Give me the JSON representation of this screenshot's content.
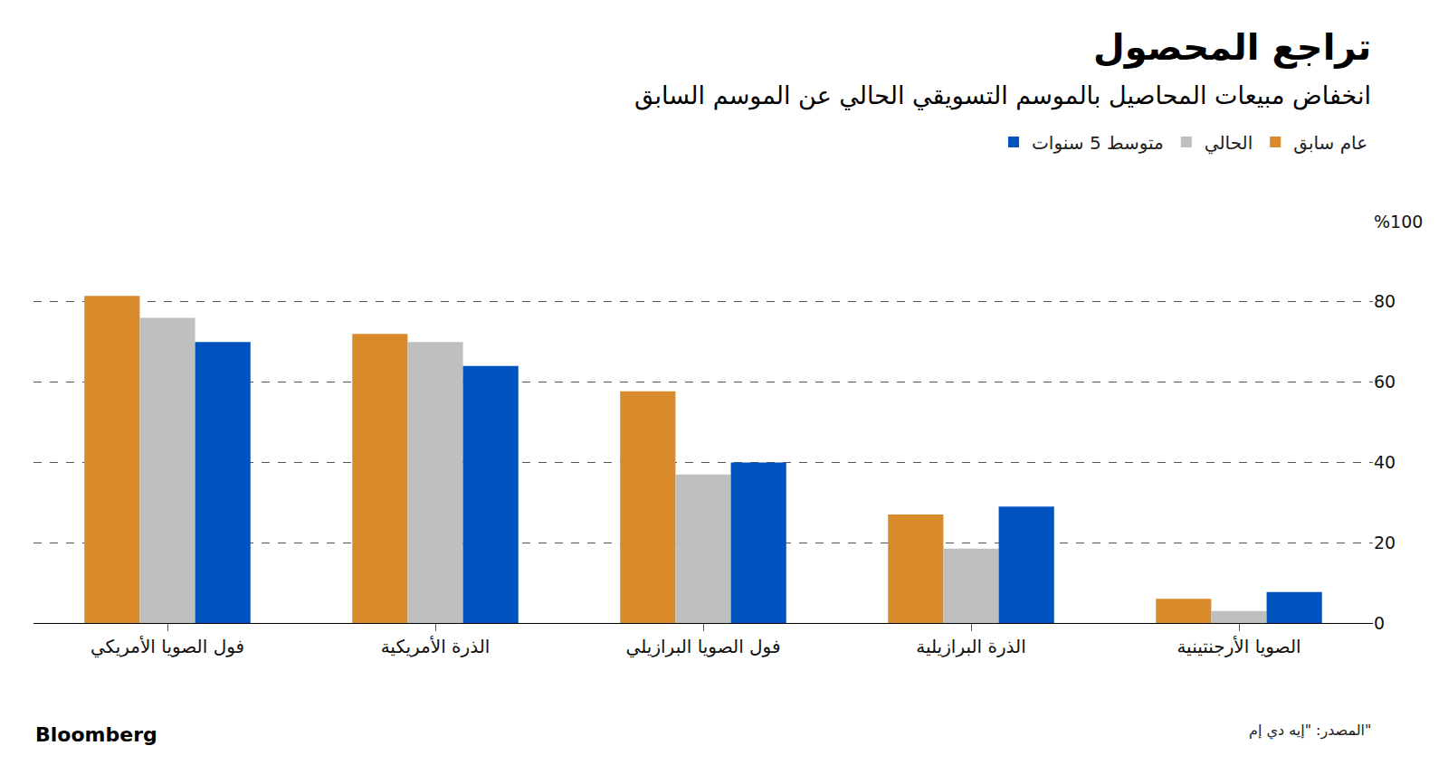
{
  "chart_data": {
    "type": "bar",
    "title": "تراجع المحصول",
    "subtitle": "انخفاض مبيعات المحاصيل بالموسم التسويقي الحالي عن الموسم السابق",
    "categories": [
      "فول الصويا الأمريكي",
      "الذرة الأمريكية",
      "فول الصويا البرازيلي",
      "الذرة البرازيلية",
      "الصويا الأرجنتينية"
    ],
    "series": [
      {
        "name": "عام سابق",
        "color": "#d98a2b",
        "values": [
          81.5,
          72,
          57.7,
          27,
          6
        ]
      },
      {
        "name": "الحالي",
        "color": "#bfbfbf",
        "values": [
          76,
          70,
          37,
          18.5,
          3
        ]
      },
      {
        "name": "متوسط 5 سنوات",
        "color": "#0052bf",
        "values": [
          70,
          64,
          40,
          29,
          7.7
        ]
      }
    ],
    "ylim": [
      0,
      100
    ],
    "yticks": [
      0,
      20,
      40,
      60,
      80,
      {
        "value": 100,
        "label": "%100"
      }
    ],
    "grid": true,
    "legend": "top-right",
    "source": "المصدر: \"إيه دي إم\"",
    "credit": "Bloomberg"
  }
}
